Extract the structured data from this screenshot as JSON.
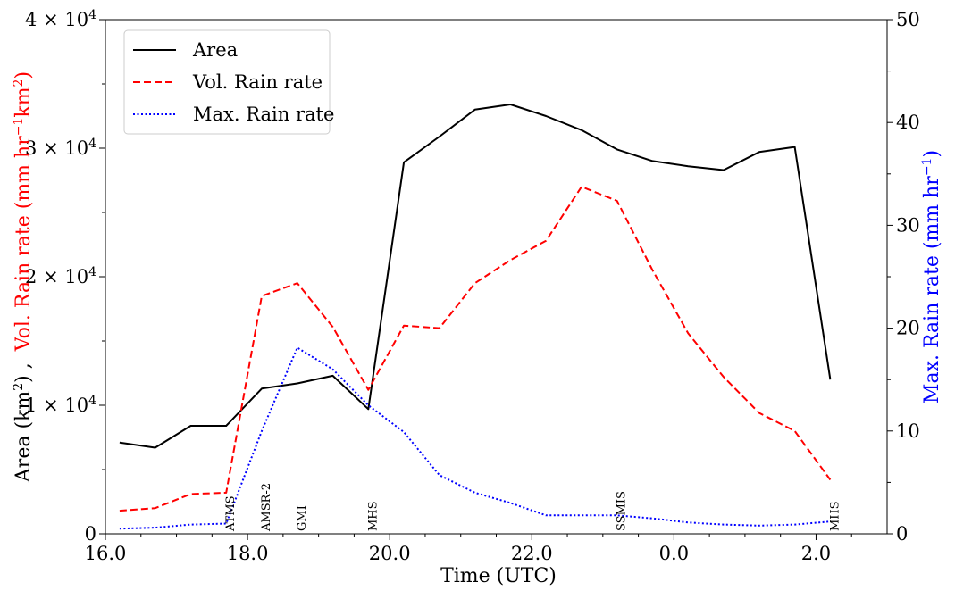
{
  "chart_data": {
    "type": "line",
    "xlabel": "Time (UTC)",
    "x_ticks": [
      "16.0",
      "18.0",
      "20.0",
      "22.0",
      "0.0",
      "2.0"
    ],
    "x_hours": [
      16.2,
      16.7,
      17.2,
      17.7,
      18.2,
      18.7,
      19.2,
      19.7,
      20.2,
      20.7,
      21.2,
      21.7,
      22.2,
      22.7,
      23.2,
      23.7,
      24.2,
      24.7,
      25.2,
      25.7,
      26.2
    ],
    "x_range_hours": [
      16.0,
      27.0
    ],
    "left_axis": {
      "ylabel_part1": "Area (km",
      "ylabel_part1_sup": "2",
      "ylabel_part1_end": ") ,",
      "ylabel_part2": "Vol. Rain rate (mm hr",
      "ylabel_part2_sup1": "−1",
      "ylabel_part2_mid": "km",
      "ylabel_part2_sup2": "2",
      "ylabel_part2_end": ")",
      "ylim": [
        0,
        40000
      ],
      "ticks": [
        {
          "value": 0,
          "mantissa": "0",
          "exp": ""
        },
        {
          "value": 10000,
          "mantissa": "1 × 10",
          "exp": "4"
        },
        {
          "value": 20000,
          "mantissa": "2 × 10",
          "exp": "4"
        },
        {
          "value": 30000,
          "mantissa": "3 × 10",
          "exp": "4"
        },
        {
          "value": 40000,
          "mantissa": "4 × 10",
          "exp": "4"
        }
      ],
      "ylabel_color_part2": "#ff0000"
    },
    "right_axis": {
      "ylabel": "Max. Rain rate (mm hr",
      "ylabel_sup": "−1",
      "ylabel_end": ")",
      "ylim": [
        0,
        50
      ],
      "ticks": [
        "0",
        "10",
        "20",
        "30",
        "40",
        "50"
      ],
      "color": "#0000ff"
    },
    "series": [
      {
        "name": "Area",
        "axis": "left",
        "color": "#000000",
        "dash": "solid",
        "values": [
          7100,
          6700,
          8400,
          8400,
          11300,
          11700,
          12300,
          9700,
          28900,
          30900,
          33000,
          33400,
          32500,
          31400,
          29900,
          29000,
          28600,
          28300,
          29700,
          30100,
          12000
        ]
      },
      {
        "name": "Vol. Rain rate",
        "axis": "left",
        "color": "#ff0000",
        "dash": "dashed",
        "values": [
          1800,
          2000,
          3100,
          3200,
          18500,
          19500,
          16100,
          11200,
          16200,
          16000,
          19500,
          21300,
          22800,
          27000,
          25900,
          20500,
          15600,
          12200,
          9400,
          8000,
          4200
        ]
      },
      {
        "name": "Max. Rain rate",
        "axis": "right",
        "color": "#0000ff",
        "dash": "dotted",
        "values": [
          0.5,
          0.6,
          0.9,
          1.0,
          10.0,
          18.1,
          16.0,
          12.5,
          9.9,
          5.7,
          4.0,
          3.0,
          1.8,
          1.8,
          1.8,
          1.5,
          1.1,
          0.9,
          0.8,
          0.9,
          1.2
        ]
      }
    ],
    "sensor_markers": [
      {
        "label": "ATMS",
        "hour": 17.75
      },
      {
        "label": "AMSR-2",
        "hour": 18.25
      },
      {
        "label": "GMI",
        "hour": 18.75
      },
      {
        "label": "MHS",
        "hour": 19.75
      },
      {
        "label": "SSMIS",
        "hour": 23.25
      },
      {
        "label": "MHS",
        "hour": 26.25
      }
    ],
    "legend_position": "top-left",
    "grid": false
  }
}
